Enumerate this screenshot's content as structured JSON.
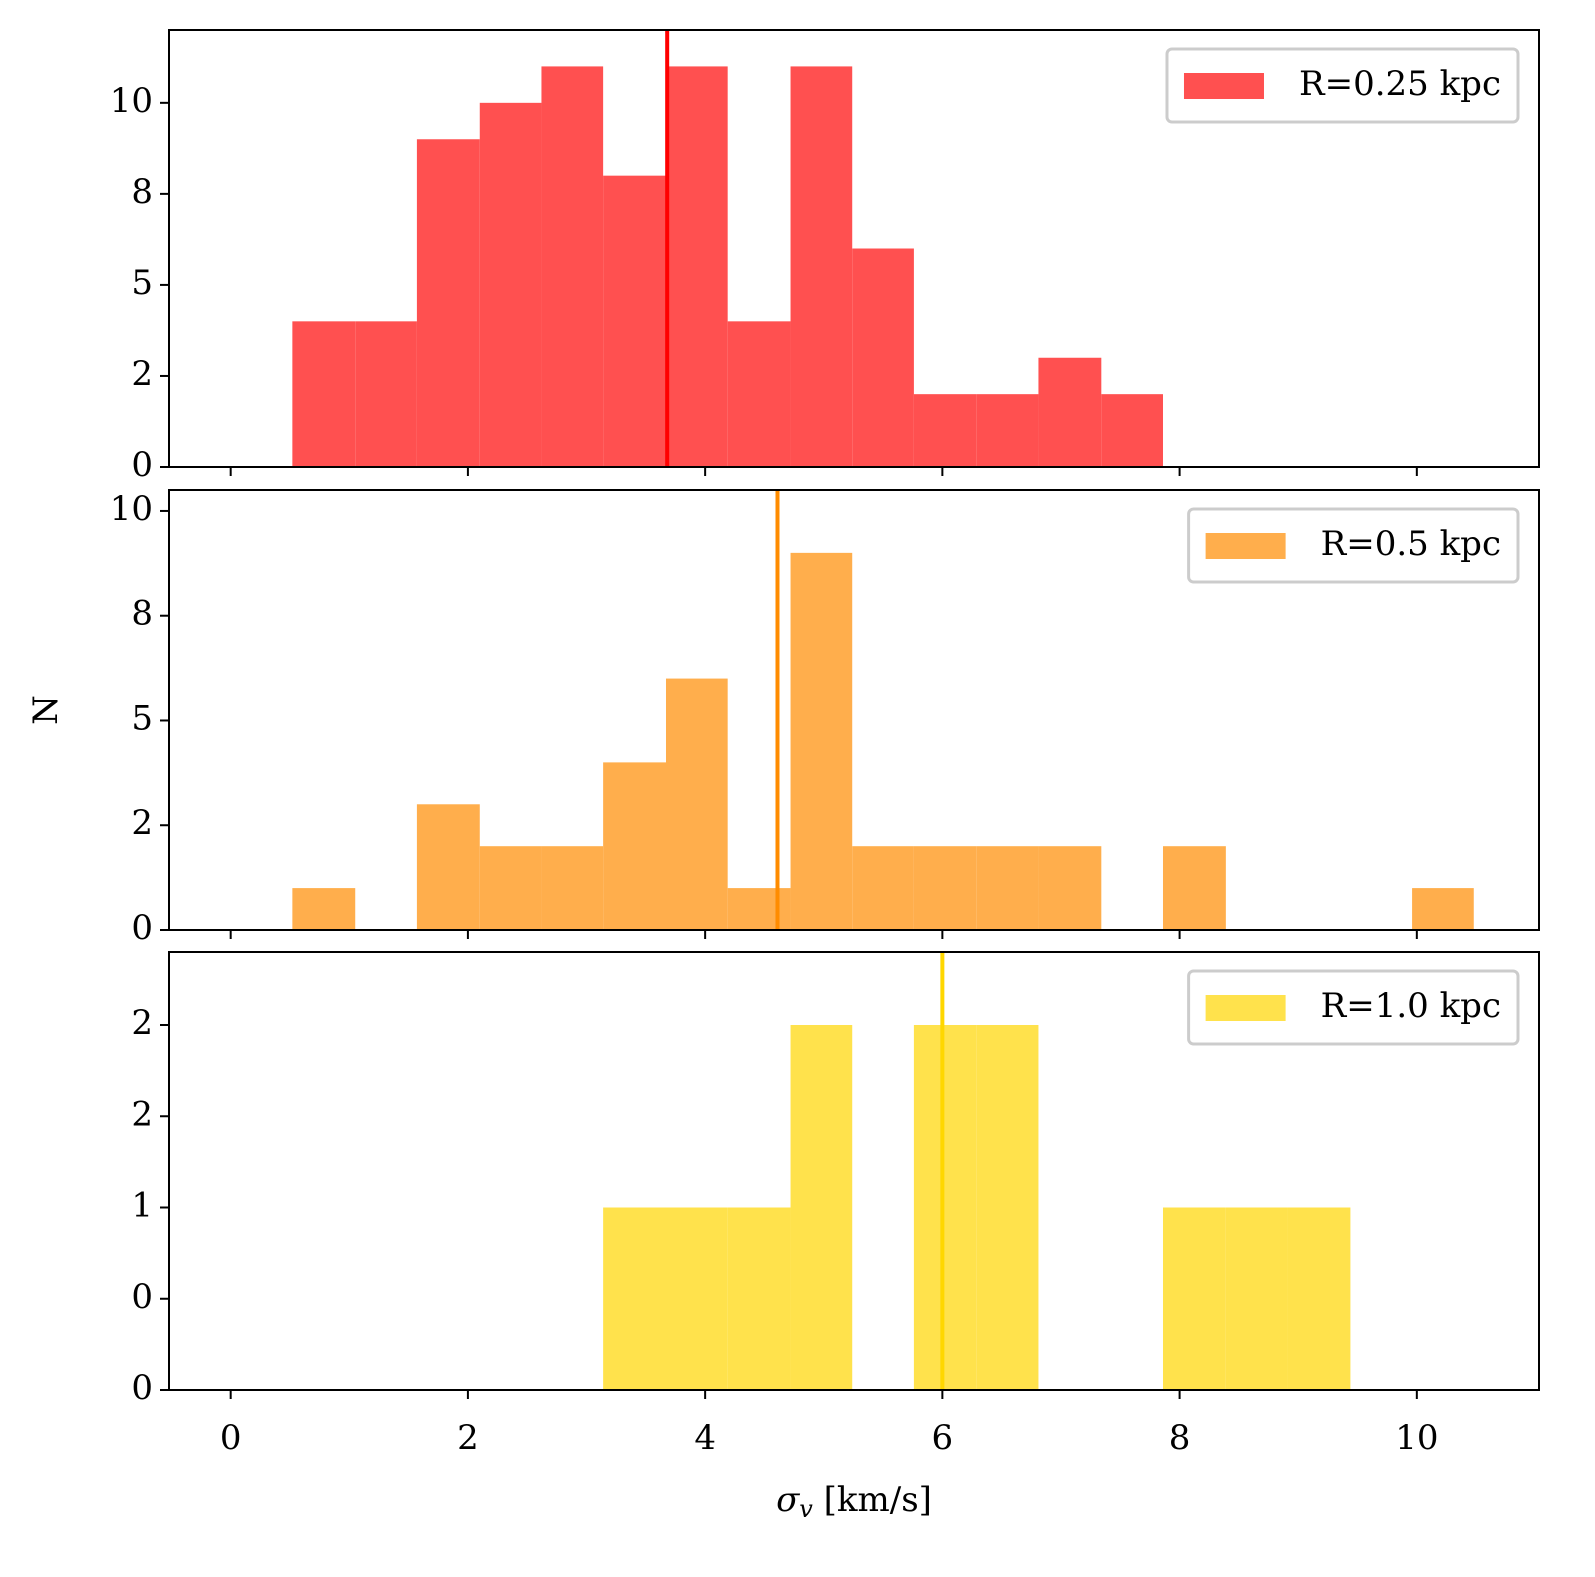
{
  "chart_data": [
    {
      "type": "histogram",
      "series_name": "R=0.25 kpc",
      "color": "#ff5050",
      "line_color": "#ff0000",
      "bins": [
        0.52,
        1.05,
        1.57,
        2.1,
        2.62,
        3.14,
        3.67,
        4.19,
        4.72,
        5.24,
        5.76,
        6.29,
        6.81,
        7.34,
        7.86
      ],
      "counts": [
        4,
        4,
        9,
        10,
        11,
        8,
        11,
        4,
        11,
        6,
        2,
        2,
        3,
        2
      ],
      "vline": 3.68,
      "ylim": [
        0,
        12
      ],
      "yticks": [
        0,
        {
          "value": 2.5,
          "label": "2"
        },
        5,
        {
          "value": 7.5,
          "label": "8"
        },
        10
      ],
      "legend": "upper right"
    },
    {
      "type": "histogram",
      "series_name": "R=0.5 kpc",
      "color": "#ffae4c",
      "line_color": "#ff8c00",
      "bins": [
        0.52,
        1.05,
        1.57,
        2.1,
        2.62,
        3.14,
        3.67,
        4.19,
        4.72,
        5.24,
        5.76,
        6.29,
        6.81,
        7.34,
        7.86,
        8.39,
        8.91,
        9.44,
        9.96,
        10.48
      ],
      "counts": [
        1,
        0,
        3,
        2,
        2,
        4,
        6,
        1,
        9,
        2,
        2,
        2,
        2,
        0,
        2,
        0,
        0,
        0,
        1
      ],
      "vline": 4.61,
      "ylim": [
        0,
        10.5
      ],
      "yticks": [
        0,
        {
          "value": 2.5,
          "label": "2"
        },
        5,
        {
          "value": 7.5,
          "label": "8"
        },
        10
      ],
      "ylabel": "N",
      "legend": "upper right"
    },
    {
      "type": "histogram",
      "series_name": "R=1.0 kpc",
      "color": "#ffe24c",
      "line_color": "#ffd700",
      "bins": [
        3.14,
        3.67,
        4.19,
        4.72,
        5.24,
        5.76,
        6.29,
        6.81,
        7.34,
        7.86,
        8.39,
        8.91,
        9.44
      ],
      "counts": [
        1,
        1,
        1,
        2,
        0,
        2,
        2,
        0,
        0,
        1,
        1,
        1
      ],
      "vline": 6.0,
      "ylim": [
        0,
        2.4
      ],
      "yticks": [
        0,
        {
          "value": 0.5,
          "label": "0"
        },
        1,
        {
          "value": 1.5,
          "label": "2"
        },
        2
      ],
      "xlim": [
        -0.52,
        11.03
      ],
      "xticks": [
        0,
        2,
        4,
        6,
        8,
        10
      ],
      "xlabel": "σv [km/s]",
      "legend": "upper right"
    }
  ]
}
